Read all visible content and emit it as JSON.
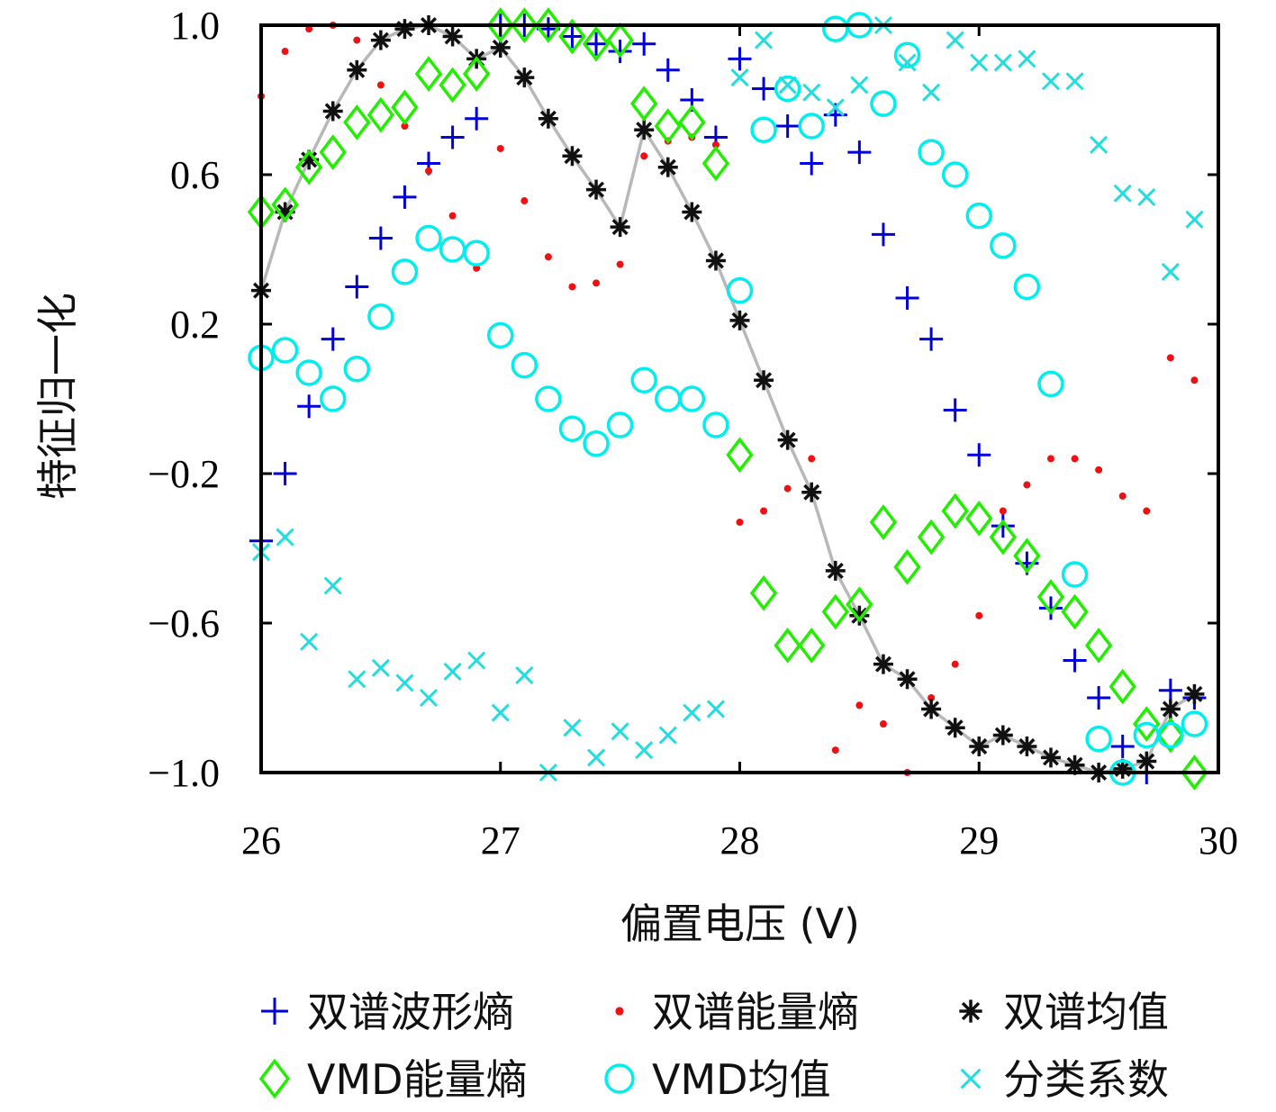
{
  "chart_data": {
    "type": "scatter",
    "xlabel": "偏置电压 (V)",
    "ylabel": "特征归一化",
    "xlim": [
      26,
      30
    ],
    "ylim": [
      -1.0,
      1.0
    ],
    "xticks": [
      "26",
      "27",
      "28",
      "29",
      "30"
    ],
    "yticks": [
      "1.0",
      "0.6",
      "0.2",
      "−0.2",
      "−0.6",
      "−1.0"
    ],
    "legend_position": "bottom",
    "series": [
      {
        "name": "双谱波形熵",
        "marker": "plus",
        "color": "#0000dd",
        "x": [
          26.0,
          26.1,
          26.2,
          26.3,
          26.4,
          26.5,
          26.6,
          26.7,
          26.8,
          26.9,
          27.0,
          27.1,
          27.2,
          27.3,
          27.4,
          27.5,
          27.6,
          27.7,
          27.8,
          27.9,
          28.0,
          28.1,
          28.2,
          28.3,
          28.4,
          28.5,
          28.6,
          28.7,
          28.8,
          28.9,
          29.0,
          29.1,
          29.2,
          29.3,
          29.4,
          29.5,
          29.6,
          29.7,
          29.8,
          29.9
        ],
        "y": [
          -0.38,
          -0.2,
          -0.02,
          0.16,
          0.3,
          0.43,
          0.54,
          0.63,
          0.7,
          0.75,
          1.0,
          1.0,
          0.99,
          0.97,
          0.95,
          0.93,
          0.95,
          0.88,
          0.8,
          0.7,
          0.91,
          0.83,
          0.73,
          0.63,
          0.76,
          0.66,
          0.44,
          0.27,
          0.16,
          -0.03,
          -0.15,
          -0.34,
          -0.44,
          -0.56,
          -0.7,
          -0.8,
          -0.93,
          -1.0,
          -0.78,
          -0.8
        ]
      },
      {
        "name": "双谱能量熵",
        "marker": "dot",
        "color": "#ee1111",
        "x": [
          26.0,
          26.1,
          26.2,
          26.3,
          26.4,
          26.5,
          26.6,
          26.7,
          26.8,
          26.9,
          27.0,
          27.1,
          27.2,
          27.3,
          27.4,
          27.5,
          27.6,
          27.7,
          27.8,
          27.9,
          28.0,
          28.1,
          28.2,
          28.3,
          28.4,
          28.5,
          28.6,
          28.7,
          28.8,
          28.9,
          29.0,
          29.1,
          29.2,
          29.3,
          29.4,
          29.5,
          29.6,
          29.7,
          29.8,
          29.9
        ],
        "y": [
          0.81,
          0.93,
          0.99,
          1.0,
          0.96,
          0.84,
          0.73,
          0.61,
          0.49,
          0.35,
          0.67,
          0.53,
          0.38,
          0.3,
          0.31,
          0.36,
          0.65,
          0.69,
          0.7,
          0.68,
          -0.33,
          -0.3,
          -0.24,
          -0.16,
          -0.94,
          -0.82,
          -0.87,
          -1.0,
          -0.8,
          -0.71,
          -0.58,
          -0.3,
          -0.23,
          -0.16,
          -0.16,
          -0.19,
          -0.26,
          -0.3,
          0.11,
          0.05
        ]
      },
      {
        "name": "双谱均值",
        "marker": "asterisk",
        "color": "#111111",
        "connected": true,
        "line_color": "#b8b8b8",
        "x": [
          26.0,
          26.1,
          26.2,
          26.3,
          26.4,
          26.5,
          26.6,
          26.7,
          26.8,
          26.9,
          27.0,
          27.1,
          27.2,
          27.3,
          27.4,
          27.5,
          27.6,
          27.7,
          27.8,
          27.9,
          28.0,
          28.1,
          28.2,
          28.3,
          28.4,
          28.5,
          28.6,
          28.7,
          28.8,
          28.9,
          29.0,
          29.1,
          29.2,
          29.3,
          29.4,
          29.5,
          29.6,
          29.7,
          29.8,
          29.9
        ],
        "y": [
          0.29,
          0.5,
          0.64,
          0.77,
          0.88,
          0.96,
          0.99,
          1.0,
          0.97,
          0.91,
          0.94,
          0.86,
          0.75,
          0.65,
          0.56,
          0.46,
          0.72,
          0.62,
          0.5,
          0.37,
          0.21,
          0.05,
          -0.11,
          -0.25,
          -0.46,
          -0.58,
          -0.71,
          -0.75,
          -0.83,
          -0.88,
          -0.93,
          -0.9,
          -0.93,
          -0.96,
          -0.98,
          -1.0,
          -0.99,
          -0.97,
          -0.83,
          -0.79
        ]
      },
      {
        "name": "VMD能量熵",
        "marker": "diamond",
        "color": "#22ee00",
        "x": [
          26.0,
          26.1,
          26.2,
          26.3,
          26.4,
          26.5,
          26.6,
          26.7,
          26.8,
          26.9,
          27.0,
          27.1,
          27.2,
          27.3,
          27.4,
          27.5,
          27.6,
          27.7,
          27.8,
          27.9,
          28.0,
          28.1,
          28.2,
          28.3,
          28.4,
          28.5,
          28.6,
          28.7,
          28.8,
          28.9,
          29.0,
          29.1,
          29.2,
          29.3,
          29.4,
          29.5,
          29.6,
          29.7,
          29.8,
          29.9
        ],
        "y": [
          0.5,
          0.52,
          0.62,
          0.66,
          0.74,
          0.76,
          0.78,
          0.87,
          0.84,
          0.87,
          1.0,
          1.0,
          1.0,
          0.97,
          0.95,
          0.96,
          0.79,
          0.73,
          0.74,
          0.63,
          -0.15,
          -0.52,
          -0.66,
          -0.66,
          -0.57,
          -0.55,
          -0.33,
          -0.45,
          -0.37,
          -0.3,
          -0.32,
          -0.37,
          -0.42,
          -0.53,
          -0.57,
          -0.66,
          -0.77,
          -0.87,
          -0.9,
          -1.0
        ]
      },
      {
        "name": "VMD均值",
        "marker": "circle",
        "color": "#00eeee",
        "x": [
          26.0,
          26.1,
          26.2,
          26.3,
          26.4,
          26.5,
          26.6,
          26.7,
          26.8,
          26.9,
          27.0,
          27.1,
          27.2,
          27.3,
          27.4,
          27.5,
          27.6,
          27.7,
          27.8,
          27.9,
          28.0,
          28.1,
          28.2,
          28.3,
          28.4,
          28.5,
          28.6,
          28.7,
          28.8,
          28.9,
          29.0,
          29.1,
          29.2,
          29.3,
          29.4,
          29.5,
          29.6,
          29.7,
          29.8,
          29.9
        ],
        "y": [
          0.11,
          0.13,
          0.07,
          0.0,
          0.08,
          0.22,
          0.34,
          0.43,
          0.4,
          0.39,
          0.17,
          0.09,
          0.0,
          -0.08,
          -0.12,
          -0.07,
          0.05,
          0.0,
          0.0,
          -0.07,
          0.29,
          0.72,
          0.83,
          0.73,
          0.99,
          1.0,
          0.79,
          0.92,
          0.66,
          0.6,
          0.49,
          0.41,
          0.3,
          0.04,
          -0.47,
          -0.91,
          -1.0,
          -0.9,
          -0.9,
          -0.87
        ]
      },
      {
        "name": "分类系数",
        "marker": "cross",
        "color": "#22dddd",
        "x": [
          26.0,
          26.1,
          26.2,
          26.3,
          26.4,
          26.5,
          26.6,
          26.7,
          26.8,
          26.9,
          27.0,
          27.1,
          27.2,
          27.3,
          27.4,
          27.5,
          27.6,
          27.7,
          27.8,
          27.9,
          28.0,
          28.1,
          28.2,
          28.3,
          28.4,
          28.5,
          28.6,
          28.7,
          28.8,
          28.9,
          29.0,
          29.1,
          29.2,
          29.3,
          29.4,
          29.5,
          29.6,
          29.7,
          29.8,
          29.9
        ],
        "y": [
          -0.41,
          -0.37,
          -0.65,
          -0.5,
          -0.75,
          -0.72,
          -0.76,
          -0.8,
          -0.73,
          -0.7,
          -0.84,
          -0.74,
          -1.0,
          -0.88,
          -0.96,
          -0.89,
          -0.94,
          -0.9,
          -0.84,
          -0.83,
          0.86,
          0.96,
          0.84,
          0.82,
          0.78,
          0.84,
          1.0,
          0.9,
          0.82,
          0.96,
          0.9,
          0.9,
          0.91,
          0.85,
          0.85,
          0.68,
          0.55,
          0.54,
          0.34,
          0.48
        ]
      }
    ]
  }
}
